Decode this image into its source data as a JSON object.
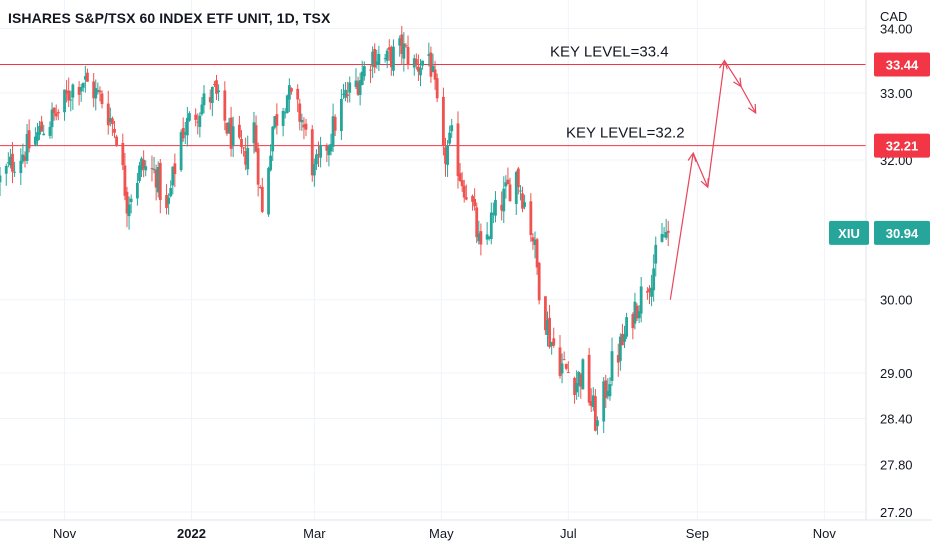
{
  "header": {
    "title": "ISHARES S&P/TSX 60 INDEX ETF UNIT, 1D, TSX",
    "currency": "CAD"
  },
  "colors": {
    "up": "#26a69a",
    "down": "#ef5350",
    "level_line": "#f23645",
    "arrow": "#e8455a",
    "grid": "#f0f3fa",
    "axis_text": "#131722"
  },
  "chart_data": {
    "type": "candlestick",
    "title": "ISHARES S&P/TSX 60 INDEX ETF UNIT, 1D, TSX",
    "ylabel": "CAD",
    "y_scale": "log",
    "ylim": [
      27.1,
      34.45
    ],
    "xlim": [
      "2021-10-01",
      "2022-11-21"
    ],
    "grid": true,
    "y_ticks": [
      "34.00",
      "33.00",
      "32.00",
      "30.00",
      "29.00",
      "28.40",
      "27.80",
      "27.20"
    ],
    "x_ticks": [
      {
        "label": "Nov",
        "date": "2021-11-01",
        "bold": false
      },
      {
        "label": "2022",
        "date": "2022-01-01",
        "bold": true
      },
      {
        "label": "Mar",
        "date": "2022-03-01",
        "bold": false
      },
      {
        "label": "May",
        "date": "2022-05-01",
        "bold": false
      },
      {
        "label": "Jul",
        "date": "2022-07-01",
        "bold": false
      },
      {
        "label": "Sep",
        "date": "2022-09-01",
        "bold": false
      },
      {
        "label": "Nov",
        "date": "2022-11-01",
        "bold": false
      }
    ],
    "close_path": [
      [
        "2021-10-01",
        31.7
      ],
      [
        "2021-10-08",
        32.0
      ],
      [
        "2021-10-15",
        32.2
      ],
      [
        "2021-10-22",
        32.5
      ],
      [
        "2021-10-29",
        32.7
      ],
      [
        "2021-11-05",
        33.1
      ],
      [
        "2021-11-10",
        33.2
      ],
      [
        "2021-11-19",
        32.9
      ],
      [
        "2021-11-26",
        32.4
      ],
      [
        "2021-12-01",
        31.4
      ],
      [
        "2021-12-08",
        31.9
      ],
      [
        "2021-12-15",
        31.8
      ],
      [
        "2021-12-20",
        31.2
      ],
      [
        "2021-12-27",
        32.4
      ],
      [
        "2022-01-05",
        32.8
      ],
      [
        "2022-01-12",
        33.0
      ],
      [
        "2022-01-19",
        32.4
      ],
      [
        "2022-01-26",
        32.0
      ],
      [
        "2022-01-31",
        32.5
      ],
      [
        "2022-02-04",
        31.2
      ],
      [
        "2022-02-09",
        32.5
      ],
      [
        "2022-02-16",
        33.0
      ],
      [
        "2022-02-23",
        32.6
      ],
      [
        "2022-03-01",
        31.8
      ],
      [
        "2022-03-08",
        32.3
      ],
      [
        "2022-03-15",
        32.9
      ],
      [
        "2022-03-22",
        33.2
      ],
      [
        "2022-03-29",
        33.6
      ],
      [
        "2022-04-05",
        33.5
      ],
      [
        "2022-04-12",
        33.7
      ],
      [
        "2022-04-19",
        33.4
      ],
      [
        "2022-04-25",
        33.6
      ],
      [
        "2022-04-28",
        33.0
      ],
      [
        "2022-05-02",
        32.0
      ],
      [
        "2022-05-06",
        32.3
      ],
      [
        "2022-05-10",
        31.8
      ],
      [
        "2022-05-16",
        31.3
      ],
      [
        "2022-05-20",
        30.6
      ],
      [
        "2022-05-25",
        31.1
      ],
      [
        "2022-06-01",
        31.5
      ],
      [
        "2022-06-06",
        31.8
      ],
      [
        "2022-06-09",
        31.5
      ],
      [
        "2022-06-14",
        30.9
      ],
      [
        "2022-06-17",
        30.2
      ],
      [
        "2022-06-22",
        29.5
      ],
      [
        "2022-06-28",
        29.1
      ],
      [
        "2022-07-05",
        28.9
      ],
      [
        "2022-07-08",
        29.0
      ],
      [
        "2022-07-13",
        28.5
      ],
      [
        "2022-07-15",
        28.3
      ],
      [
        "2022-07-19",
        28.8
      ],
      [
        "2022-07-22",
        29.1
      ],
      [
        "2022-07-27",
        29.4
      ],
      [
        "2022-08-02",
        29.9
      ],
      [
        "2022-08-09",
        30.3
      ],
      [
        "2022-08-16",
        30.9
      ],
      [
        "2022-08-18",
        30.94
      ]
    ],
    "price_levels": [
      {
        "value": 33.44,
        "label": "33.44",
        "annotation": "KEY LEVEL=33.4"
      },
      {
        "value": 32.21,
        "label": "32.21",
        "annotation": "KEY LEVEL=32.2"
      }
    ],
    "last_price": {
      "symbol": "XIU",
      "value": 30.94,
      "label": "30.94"
    },
    "projection_path": [
      [
        "2022-08-19",
        30.0
      ],
      [
        "2022-08-30",
        32.1
      ],
      [
        "2022-09-06",
        31.6
      ],
      [
        "2022-09-14",
        33.5
      ],
      [
        "2022-09-22",
        33.1
      ],
      [
        "2022-09-29",
        32.7
      ]
    ]
  }
}
